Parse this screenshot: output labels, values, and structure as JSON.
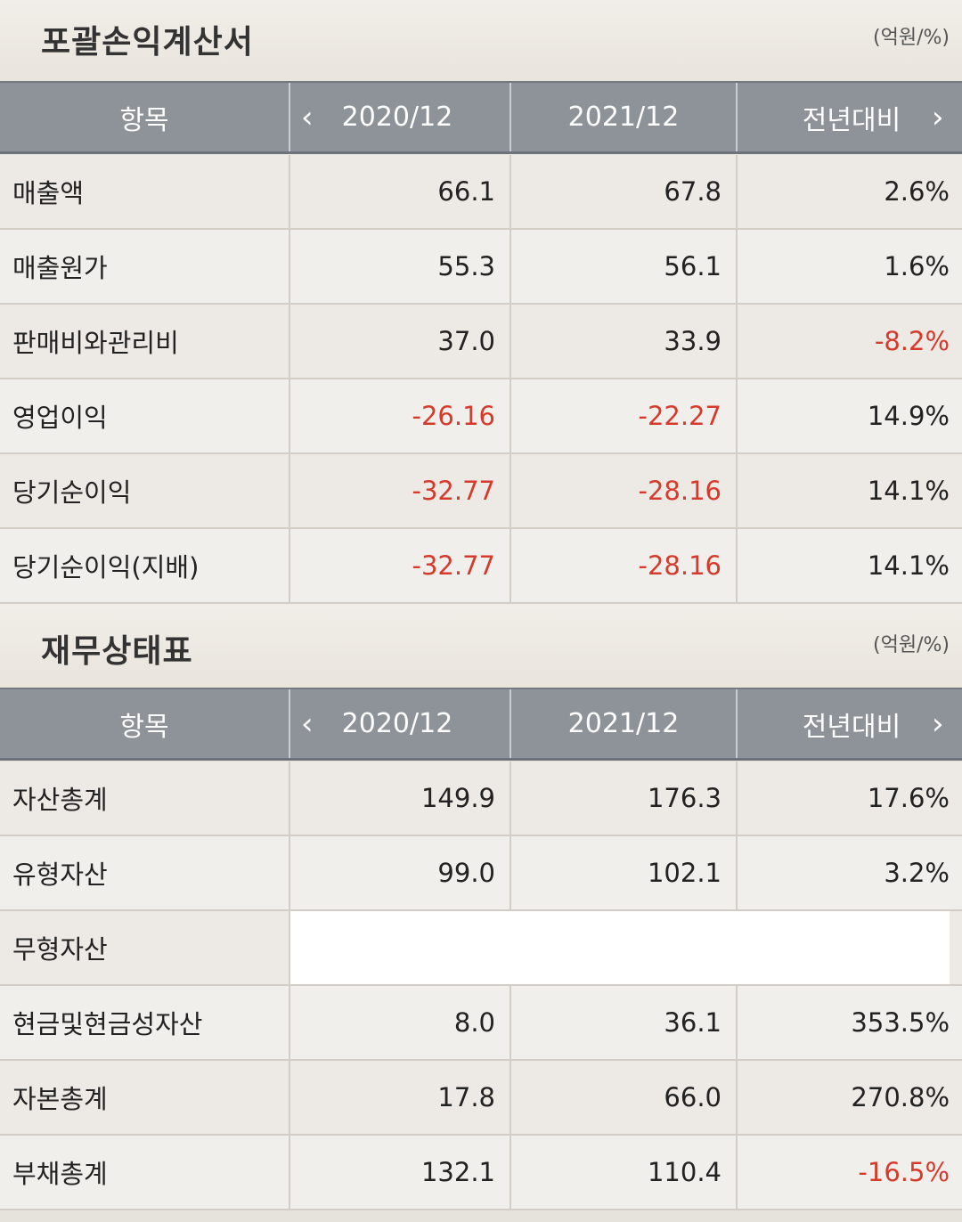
{
  "sections": [
    {
      "title": "포괄손익계산서",
      "unit": "(억원/%)",
      "header": {
        "item": "항목",
        "col1": "2020/12",
        "col2": "2021/12",
        "col3": "전년대비"
      },
      "rows": [
        {
          "label": "매출액",
          "v1": "66.1",
          "v2": "67.8",
          "v3": "2.6%"
        },
        {
          "label": "매출원가",
          "v1": "55.3",
          "v2": "56.1",
          "v3": "1.6%"
        },
        {
          "label": "판매비와관리비",
          "v1": "37.0",
          "v2": "33.9",
          "v3": "-8.2%"
        },
        {
          "label": "영업이익",
          "v1": "-26.16",
          "v2": "-22.27",
          "v3": "14.9%"
        },
        {
          "label": "당기순이익",
          "v1": "-32.77",
          "v2": "-28.16",
          "v3": "14.1%"
        },
        {
          "label": "당기순이익(지배)",
          "v1": "-32.77",
          "v2": "-28.16",
          "v3": "14.1%"
        }
      ]
    },
    {
      "title": "재무상태표",
      "unit": "(억원/%)",
      "header": {
        "item": "항목",
        "col1": "2020/12",
        "col2": "2021/12",
        "col3": "전년대비"
      },
      "rows": [
        {
          "label": "자산총계",
          "v1": "149.9",
          "v2": "176.3",
          "v3": "17.6%"
        },
        {
          "label": "유형자산",
          "v1": "99.0",
          "v2": "102.1",
          "v3": "3.2%"
        },
        {
          "label": "무형자산",
          "v1": "",
          "v2": "",
          "v3": ""
        },
        {
          "label": "현금및현금성자산",
          "v1": "8.0",
          "v2": "36.1",
          "v3": "353.5%"
        },
        {
          "label": "자본총계",
          "v1": "17.8",
          "v2": "66.0",
          "v3": "270.8%"
        },
        {
          "label": "부채총계",
          "v1": "132.1",
          "v2": "110.4",
          "v3": "-16.5%"
        }
      ]
    }
  ],
  "icons": {
    "prev": "chevron-left-icon",
    "next": "chevron-right-icon"
  },
  "colors": {
    "negative": "#d63a2b",
    "header_bg": "#8e9299"
  }
}
